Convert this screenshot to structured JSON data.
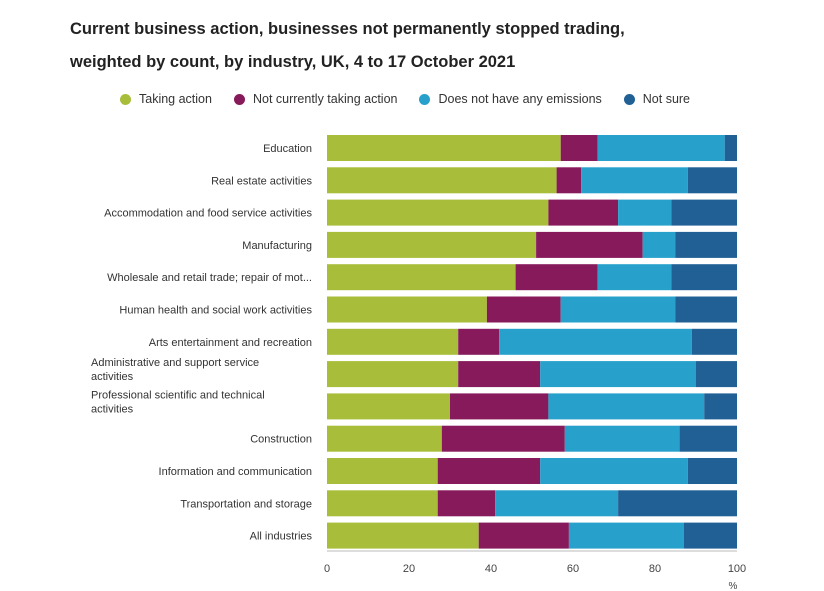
{
  "chart_data": {
    "type": "bar",
    "orientation": "horizontal",
    "stacked": true,
    "title_line1": "Current business action, businesses not permanently stopped trading,",
    "title_line2": "weighted by count, by industry, UK, 4 to 17 October 2021",
    "xlabel": "%",
    "xlim": [
      0,
      100
    ],
    "xticks": [
      0,
      20,
      40,
      60,
      80,
      100
    ],
    "grid": false,
    "legend_position": "top",
    "categories": [
      "Education",
      "Real estate activities",
      "Accommodation and food service activities",
      "Manufacturing",
      "Wholesale and retail trade; repair of mot...",
      "Human health and social work activities",
      "Arts entertainment and recreation",
      "Administrative and support service activities",
      "Professional scientific and technical activities",
      "Construction",
      "Information and communication",
      "Transportation and storage",
      "All industries"
    ],
    "category_lines": [
      [
        "Education"
      ],
      [
        "Real estate activities"
      ],
      [
        "Accommodation and food service activities"
      ],
      [
        "Manufacturing"
      ],
      [
        "Wholesale and retail trade; repair of mot..."
      ],
      [
        "Human health and social work activities"
      ],
      [
        "Arts entertainment and recreation"
      ],
      [
        "Administrative and support service",
        "activities"
      ],
      [
        "Professional scientific and technical",
        "activities"
      ],
      [
        "Construction"
      ],
      [
        "Information and communication"
      ],
      [
        "Transportation and storage"
      ],
      [
        "All industries"
      ]
    ],
    "series": [
      {
        "name": "Taking action",
        "color": "#a8bd3a",
        "values": [
          57,
          56,
          54,
          51,
          46,
          39,
          32,
          32,
          30,
          28,
          27,
          27,
          37
        ]
      },
      {
        "name": "Not currently taking action",
        "color": "#871a5b",
        "values": [
          9,
          6,
          17,
          26,
          20,
          18,
          10,
          20,
          24,
          30,
          25,
          14,
          22
        ]
      },
      {
        "name": "Does not have any emissions",
        "color": "#27a0cc",
        "values": [
          31,
          26,
          13,
          8,
          18,
          28,
          47,
          38,
          38,
          28,
          36,
          30,
          28
        ]
      },
      {
        "name": "Not sure",
        "color": "#206095",
        "values": [
          3,
          12,
          16,
          15,
          16,
          15,
          11,
          10,
          8,
          14,
          12,
          29,
          13
        ]
      }
    ]
  }
}
